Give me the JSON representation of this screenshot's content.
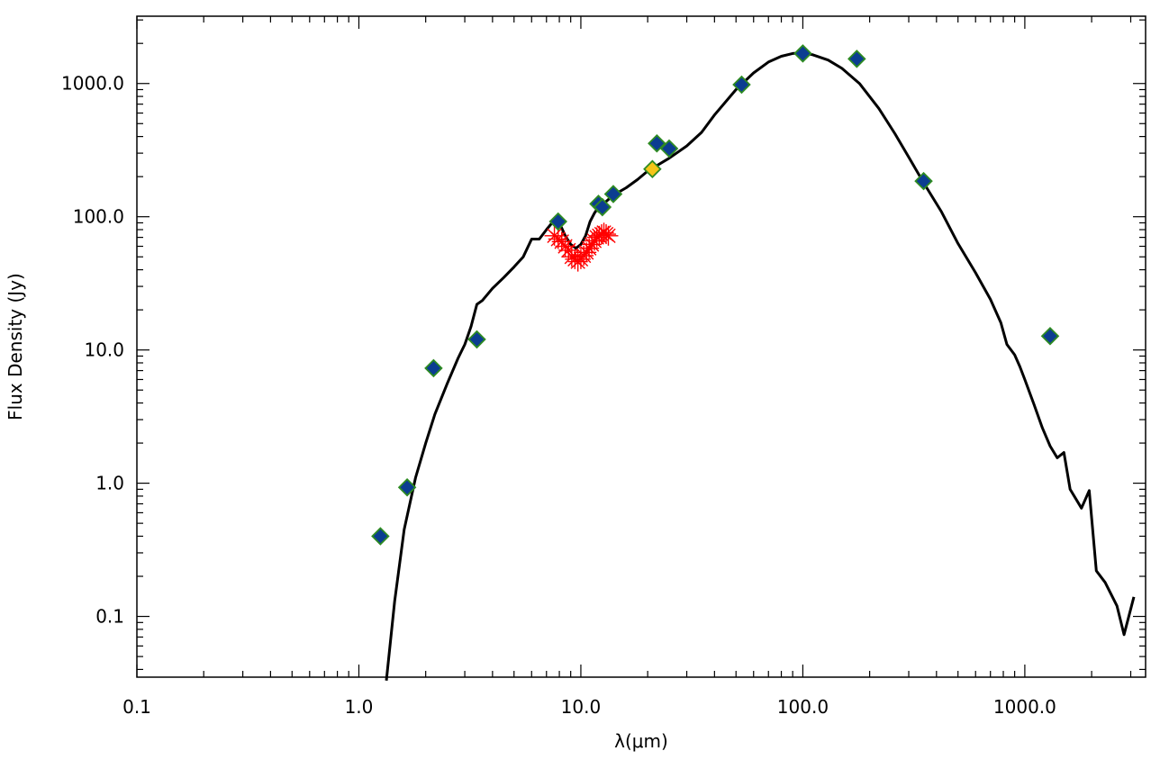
{
  "chart_data": {
    "type": "scatter",
    "xlabel": "λ(μm)",
    "ylabel": "Flux Density (Jy)",
    "xscale": "log",
    "yscale": "log",
    "xlim": [
      0.1,
      3500
    ],
    "ylim": [
      0.035,
      3200
    ],
    "x_ticks": [
      {
        "value": 0.1,
        "label": "0.1"
      },
      {
        "value": 1,
        "label": "1.0"
      },
      {
        "value": 10,
        "label": "10.0"
      },
      {
        "value": 100,
        "label": "100.0"
      },
      {
        "value": 1000,
        "label": "1000.0"
      }
    ],
    "y_ticks": [
      {
        "value": 0.1,
        "label": "0.1"
      },
      {
        "value": 1,
        "label": "1.0"
      },
      {
        "value": 10,
        "label": "10.0"
      },
      {
        "value": 100,
        "label": "100.0"
      },
      {
        "value": 1000,
        "label": "1000.0"
      }
    ],
    "grid": false,
    "colors": {
      "model_line": "#000000",
      "diamond_fill": "#0b3d91",
      "diamond_edge": "#2e8b22",
      "highlight_fill": "#f5c518",
      "spectrum": "#ff0000"
    },
    "series": [
      {
        "kind": "line",
        "points": [
          [
            1.33,
            0.033
          ],
          [
            1.45,
            0.13
          ],
          [
            1.6,
            0.45
          ],
          [
            1.8,
            1.1
          ],
          [
            2.0,
            2.0
          ],
          [
            2.2,
            3.3
          ],
          [
            2.5,
            5.6
          ],
          [
            2.8,
            8.7
          ],
          [
            3.0,
            11.0
          ],
          [
            3.2,
            15.0
          ],
          [
            3.4,
            22.0
          ],
          [
            3.6,
            23.5
          ],
          [
            4.0,
            29.0
          ],
          [
            4.5,
            35.0
          ],
          [
            5.0,
            42.0
          ],
          [
            5.5,
            50.0
          ],
          [
            6.0,
            68.0
          ],
          [
            6.5,
            68.0
          ],
          [
            7.0,
            80.0
          ],
          [
            7.5,
            92.0
          ],
          [
            8.0,
            90.0
          ],
          [
            8.5,
            72.0
          ],
          [
            9.0,
            62.0
          ],
          [
            9.5,
            58.0
          ],
          [
            10.0,
            62.0
          ],
          [
            10.5,
            72.0
          ],
          [
            11.0,
            92.0
          ],
          [
            11.5,
            106.0
          ],
          [
            12.0,
            118.0
          ],
          [
            13.0,
            130.0
          ],
          [
            14.0,
            145.0
          ],
          [
            16.0,
            165.0
          ],
          [
            18.0,
            190.0
          ],
          [
            20.0,
            220.0
          ],
          [
            25.0,
            275.0
          ],
          [
            30.0,
            340.0
          ],
          [
            35.0,
            430.0
          ],
          [
            40.0,
            580.0
          ],
          [
            50.0,
            900.0
          ],
          [
            60.0,
            1200.0
          ],
          [
            70.0,
            1450.0
          ],
          [
            80.0,
            1600.0
          ],
          [
            90.0,
            1680.0
          ],
          [
            100.0,
            1700.0
          ],
          [
            110.0,
            1650.0
          ],
          [
            130.0,
            1500.0
          ],
          [
            150.0,
            1300.0
          ],
          [
            180.0,
            1000.0
          ],
          [
            220.0,
            650.0
          ],
          [
            260.0,
            420.0
          ],
          [
            300.0,
            280.0
          ],
          [
            350.0,
            180.0
          ],
          [
            420.0,
            110.0
          ],
          [
            500.0,
            63.0
          ],
          [
            600.0,
            38.0
          ],
          [
            700.0,
            24.0
          ],
          [
            780.0,
            16.0
          ],
          [
            830.0,
            11.0
          ],
          [
            900.0,
            9.2
          ],
          [
            950.0,
            7.5
          ],
          [
            1000.0,
            6.0
          ],
          [
            1100.0,
            3.9
          ],
          [
            1200.0,
            2.6
          ],
          [
            1300.0,
            1.9
          ],
          [
            1400.0,
            1.55
          ],
          [
            1500.0,
            1.7
          ],
          [
            1600.0,
            0.9
          ],
          [
            1800.0,
            0.65
          ],
          [
            1950.0,
            0.88
          ],
          [
            2100.0,
            0.22
          ],
          [
            2300.0,
            0.18
          ],
          [
            2600.0,
            0.12
          ],
          [
            2800.0,
            0.073
          ],
          [
            3100.0,
            0.14
          ]
        ]
      },
      {
        "kind": "diamond",
        "points": [
          [
            1.25,
            0.4
          ],
          [
            1.65,
            0.93
          ],
          [
            2.17,
            7.3
          ],
          [
            3.4,
            12.0
          ],
          [
            7.9,
            92.0
          ],
          [
            12.0,
            125.0
          ],
          [
            12.5,
            118.0
          ],
          [
            14.0,
            148.0
          ],
          [
            22.0,
            355.0
          ],
          [
            25.0,
            325.0
          ],
          [
            53.0,
            980.0
          ],
          [
            100.0,
            1680.0
          ],
          [
            175.0,
            1530.0
          ],
          [
            350.0,
            185.0
          ],
          [
            1300.0,
            12.7
          ]
        ]
      },
      {
        "kind": "diamond-highlight",
        "points": [
          [
            21.0,
            228.0
          ]
        ]
      },
      {
        "kind": "spectrum",
        "points": [
          [
            7.6,
            72.0
          ],
          [
            7.9,
            68.0
          ],
          [
            8.2,
            65.0
          ],
          [
            8.5,
            60.0
          ],
          [
            8.8,
            56.0
          ],
          [
            9.1,
            50.0
          ],
          [
            9.4,
            48.0
          ],
          [
            9.7,
            46.0
          ],
          [
            10.0,
            48.0
          ],
          [
            10.3,
            51.0
          ],
          [
            10.6,
            54.0
          ],
          [
            10.9,
            58.0
          ],
          [
            11.2,
            62.0
          ],
          [
            11.5,
            66.0
          ],
          [
            11.8,
            70.0
          ],
          [
            12.1,
            72.0
          ],
          [
            12.4,
            74.0
          ],
          [
            12.7,
            76.0
          ],
          [
            13.0,
            74.0
          ],
          [
            13.3,
            72.0
          ]
        ]
      }
    ]
  }
}
